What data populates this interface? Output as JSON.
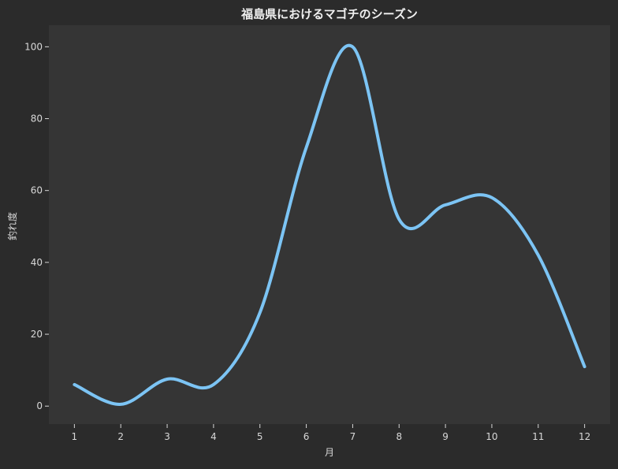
{
  "chart_data": {
    "type": "line",
    "title": "福島県におけるマゴチのシーズン",
    "xlabel": "月",
    "ylabel": "釣れ度",
    "x": [
      1,
      2,
      3,
      4,
      5,
      6,
      7,
      8,
      9,
      10,
      11,
      12
    ],
    "series": [
      {
        "values": [
          6,
          0.5,
          7.5,
          6,
          26,
          72,
          100,
          52,
          56,
          58,
          42,
          11
        ]
      }
    ],
    "xlim": [
      0.45,
      12.55
    ],
    "ylim": [
      -5,
      106
    ],
    "xticks": [
      1,
      2,
      3,
      4,
      5,
      6,
      7,
      8,
      9,
      10,
      11,
      12
    ],
    "yticks": [
      0,
      20,
      40,
      60,
      80,
      100
    ],
    "grid": false,
    "legend": "none",
    "colors": {
      "background": "#2b2b2b",
      "plot_background": "#353535",
      "line": "#7cc4f4",
      "text": "#d8d8d8",
      "title": "#f0f0f0"
    }
  }
}
